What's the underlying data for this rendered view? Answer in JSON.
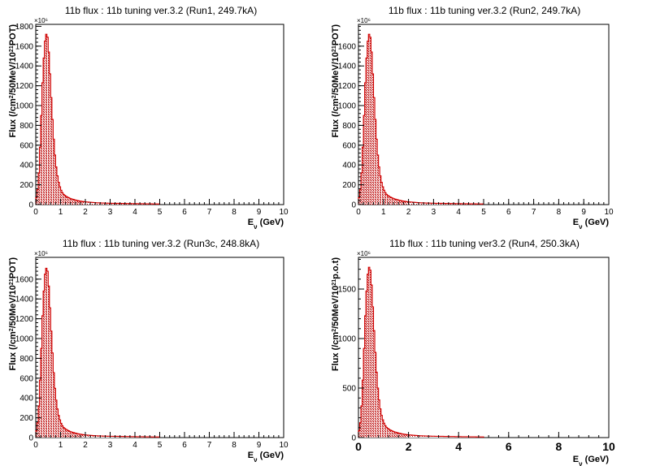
{
  "chart_data": [
    {
      "type": "bar",
      "title": "11b flux : 11b tuning ver.3.2 (Run1, 249.7kA)",
      "xlabel": "E_ν (GeV)",
      "ylabel": "Flux (/cm²/50MeV/10²¹POT)",
      "ylabel_parts": [
        "Flux (/cm",
        "2",
        "/50MeV/10",
        "21",
        "POT)"
      ],
      "xlabel_parts": [
        "E",
        "ν",
        " (GeV)"
      ],
      "y_multiplier": "×10⁶",
      "xlim": [
        0,
        10
      ],
      "ylim": [
        0,
        1820
      ],
      "xticks": [
        0,
        1,
        2,
        3,
        4,
        5,
        6,
        7,
        8,
        9,
        10
      ],
      "yticks": [
        0,
        200,
        400,
        600,
        800,
        1000,
        1200,
        1400,
        1600,
        1800
      ],
      "bin_width": 0.05,
      "x_start": 0.0,
      "values": [
        70,
        150,
        320,
        580,
        900,
        1230,
        1480,
        1650,
        1720,
        1690,
        1540,
        1320,
        1080,
        860,
        660,
        500,
        380,
        290,
        225,
        180,
        145,
        120,
        103,
        92,
        83,
        76,
        70,
        64,
        59,
        55,
        51,
        47,
        44,
        41,
        38,
        36,
        34,
        32,
        30,
        28,
        27,
        26,
        25,
        24,
        23,
        22,
        21,
        20,
        19,
        18,
        18,
        17,
        17,
        16,
        16,
        15,
        15,
        15,
        14,
        14,
        14,
        13,
        13,
        13,
        12,
        12,
        12,
        12,
        11,
        11,
        11,
        11,
        10,
        10,
        10,
        10,
        10,
        9,
        9,
        9,
        9,
        9,
        8,
        8,
        8,
        8,
        8,
        8,
        7,
        7,
        7,
        7,
        7,
        7,
        6,
        6,
        6,
        6,
        6,
        6
      ]
    },
    {
      "type": "bar",
      "title": "11b flux : 11b tuning ver.3.2 (Run2, 249.7kA)",
      "xlabel": "E_ν (GeV)",
      "ylabel": "Flux (/cm²/50MeV/10²¹POT)",
      "ylabel_parts": [
        "Flux (/cm",
        "2",
        "/50MeV/10",
        "21",
        "POT)"
      ],
      "xlabel_parts": [
        "E",
        "ν",
        " (GeV)"
      ],
      "y_multiplier": "×10⁶",
      "xlim": [
        0,
        10
      ],
      "ylim": [
        0,
        1820
      ],
      "xticks": [
        0,
        1,
        2,
        3,
        4,
        5,
        6,
        7,
        8,
        9,
        10
      ],
      "yticks": [
        0,
        200,
        400,
        600,
        800,
        1000,
        1200,
        1400,
        1600
      ],
      "bin_width": 0.05,
      "x_start": 0.0,
      "values": [
        70,
        150,
        320,
        580,
        900,
        1230,
        1480,
        1650,
        1720,
        1690,
        1540,
        1320,
        1080,
        860,
        660,
        500,
        380,
        290,
        225,
        180,
        145,
        120,
        103,
        92,
        83,
        76,
        70,
        64,
        59,
        55,
        51,
        47,
        44,
        41,
        38,
        36,
        34,
        32,
        30,
        28,
        27,
        26,
        25,
        24,
        23,
        22,
        21,
        20,
        19,
        18,
        18,
        17,
        17,
        16,
        16,
        15,
        15,
        15,
        14,
        14,
        14,
        13,
        13,
        13,
        12,
        12,
        12,
        12,
        11,
        11,
        11,
        11,
        10,
        10,
        10,
        10,
        10,
        9,
        9,
        9,
        9,
        9,
        8,
        8,
        8,
        8,
        8,
        8,
        7,
        7,
        7,
        7,
        7,
        7,
        6,
        6,
        6,
        6,
        6,
        6
      ]
    },
    {
      "type": "bar",
      "title": "11b flux : 11b tuning ver.3.2 (Run3c, 248.8kA)",
      "xlabel": "E_ν (GeV)",
      "ylabel": "Flux (/cm²/50MeV/10²¹POT)",
      "ylabel_parts": [
        "Flux (/cm",
        "2",
        "/50MeV/10",
        "21",
        "POT)"
      ],
      "xlabel_parts": [
        "E",
        "ν",
        " (GeV)"
      ],
      "y_multiplier": "×10⁶",
      "xlim": [
        0,
        10
      ],
      "ylim": [
        0,
        1820
      ],
      "xticks": [
        0,
        1,
        2,
        3,
        4,
        5,
        6,
        7,
        8,
        9,
        10
      ],
      "yticks": [
        0,
        200,
        400,
        600,
        800,
        1000,
        1200,
        1400,
        1600
      ],
      "bin_width": 0.05,
      "x_start": 0.0,
      "values": [
        70,
        150,
        320,
        580,
        900,
        1230,
        1480,
        1650,
        1710,
        1680,
        1530,
        1310,
        1075,
        855,
        655,
        497,
        378,
        289,
        224,
        179,
        144,
        119,
        102,
        91,
        82,
        75,
        69,
        63,
        58,
        54,
        50,
        46,
        43,
        40,
        37,
        35,
        33,
        31,
        29,
        27,
        26,
        25,
        24,
        23,
        22,
        21,
        20,
        19,
        18,
        18,
        17,
        17,
        16,
        16,
        15,
        15,
        15,
        14,
        14,
        14,
        13,
        13,
        13,
        12,
        12,
        12,
        12,
        11,
        11,
        11,
        11,
        10,
        10,
        10,
        10,
        10,
        9,
        9,
        9,
        9,
        9,
        8,
        8,
        8,
        8,
        8,
        8,
        7,
        7,
        7,
        7,
        7,
        7,
        6,
        6,
        6,
        6,
        6,
        6,
        6
      ]
    },
    {
      "type": "bar",
      "title": "11b flux : 11b tuning ver3.2 (Run4, 250.3kA)",
      "xlabel": "E_ν (GeV)",
      "ylabel": "Flux (/cm²/50MeV/10²¹p.o.t)",
      "ylabel_parts": [
        "Flux (/cm",
        "2",
        "/50MeV/10",
        "21",
        "p.o.t)"
      ],
      "xlabel_parts": [
        "E",
        "ν",
        " (GeV)"
      ],
      "y_multiplier": "×10⁶",
      "xlim": [
        0,
        10
      ],
      "ylim": [
        0,
        1820
      ],
      "xticks": [
        0,
        2,
        4,
        6,
        8,
        10
      ],
      "yticks": [
        0,
        500,
        1000,
        1500
      ],
      "bin_width": 0.05,
      "x_start": 0.0,
      "values": [
        70,
        150,
        320,
        580,
        900,
        1230,
        1480,
        1650,
        1720,
        1690,
        1540,
        1320,
        1080,
        860,
        660,
        500,
        380,
        290,
        225,
        180,
        145,
        120,
        103,
        92,
        83,
        76,
        70,
        64,
        59,
        55,
        51,
        47,
        44,
        41,
        38,
        36,
        34,
        32,
        30,
        28,
        27,
        26,
        25,
        24,
        23,
        22,
        21,
        20,
        19,
        18,
        18,
        17,
        17,
        16,
        16,
        15,
        15,
        15,
        14,
        14,
        14,
        13,
        13,
        13,
        12,
        12,
        12,
        12,
        11,
        11,
        11,
        11,
        10,
        10,
        10,
        10,
        10,
        9,
        9,
        9,
        9,
        9,
        8,
        8,
        8,
        8,
        8,
        8,
        7,
        7,
        7,
        7,
        7,
        7,
        6,
        6,
        6,
        6,
        6,
        6
      ]
    }
  ]
}
